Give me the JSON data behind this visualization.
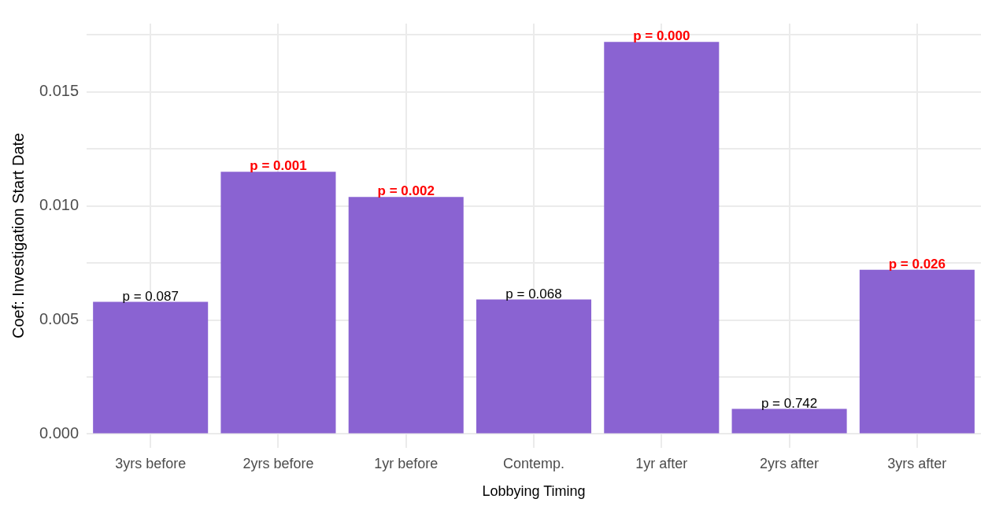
{
  "chart_data": {
    "type": "bar",
    "xlabel": "Lobbying Timing",
    "ylabel": "Coef: Investigation Start Date",
    "categories": [
      "3yrs before",
      "2yrs before",
      "1yr before",
      "Contemp.",
      "1yr after",
      "2yrs after",
      "3yrs after"
    ],
    "values": [
      0.0058,
      0.0115,
      0.0104,
      0.0059,
      0.0172,
      0.0011,
      0.0072
    ],
    "color": "#8a63d2",
    "annotations": [
      {
        "text": "p = 0.087",
        "x": "3yrs before",
        "y": 0.0058
      },
      {
        "text": "p = 0.001",
        "x": "2yrs before",
        "y": 0.0115
      },
      {
        "text": "p = 0.002",
        "x": "1yr before",
        "y": 0.0104
      },
      {
        "text": "p = 0.068",
        "x": "Contemp.",
        "y": 0.0059
      },
      {
        "text": "p = 0.000",
        "x": "1yr after",
        "y": 0.0172
      },
      {
        "text": "p = 0.742",
        "x": "2yrs after",
        "y": 0.0011
      },
      {
        "text": "p = 0.026",
        "x": "3yrs after",
        "y": 0.0072
      }
    ],
    "ylim": [
      -0.0006,
      0.018
    ],
    "yticks": [
      {
        "value": 0,
        "label": "0.000"
      },
      {
        "value": 0.0025,
        "label": null
      },
      {
        "value": 0.005,
        "label": "0.005"
      },
      {
        "value": 0.0075,
        "label": null
      },
      {
        "value": 0.01,
        "label": "0.010"
      },
      {
        "value": 0.0125,
        "label": null
      },
      {
        "value": 0.015,
        "label": "0.015"
      },
      {
        "value": 0.0175,
        "label": null
      }
    ],
    "grid": true,
    "legend": false
  }
}
